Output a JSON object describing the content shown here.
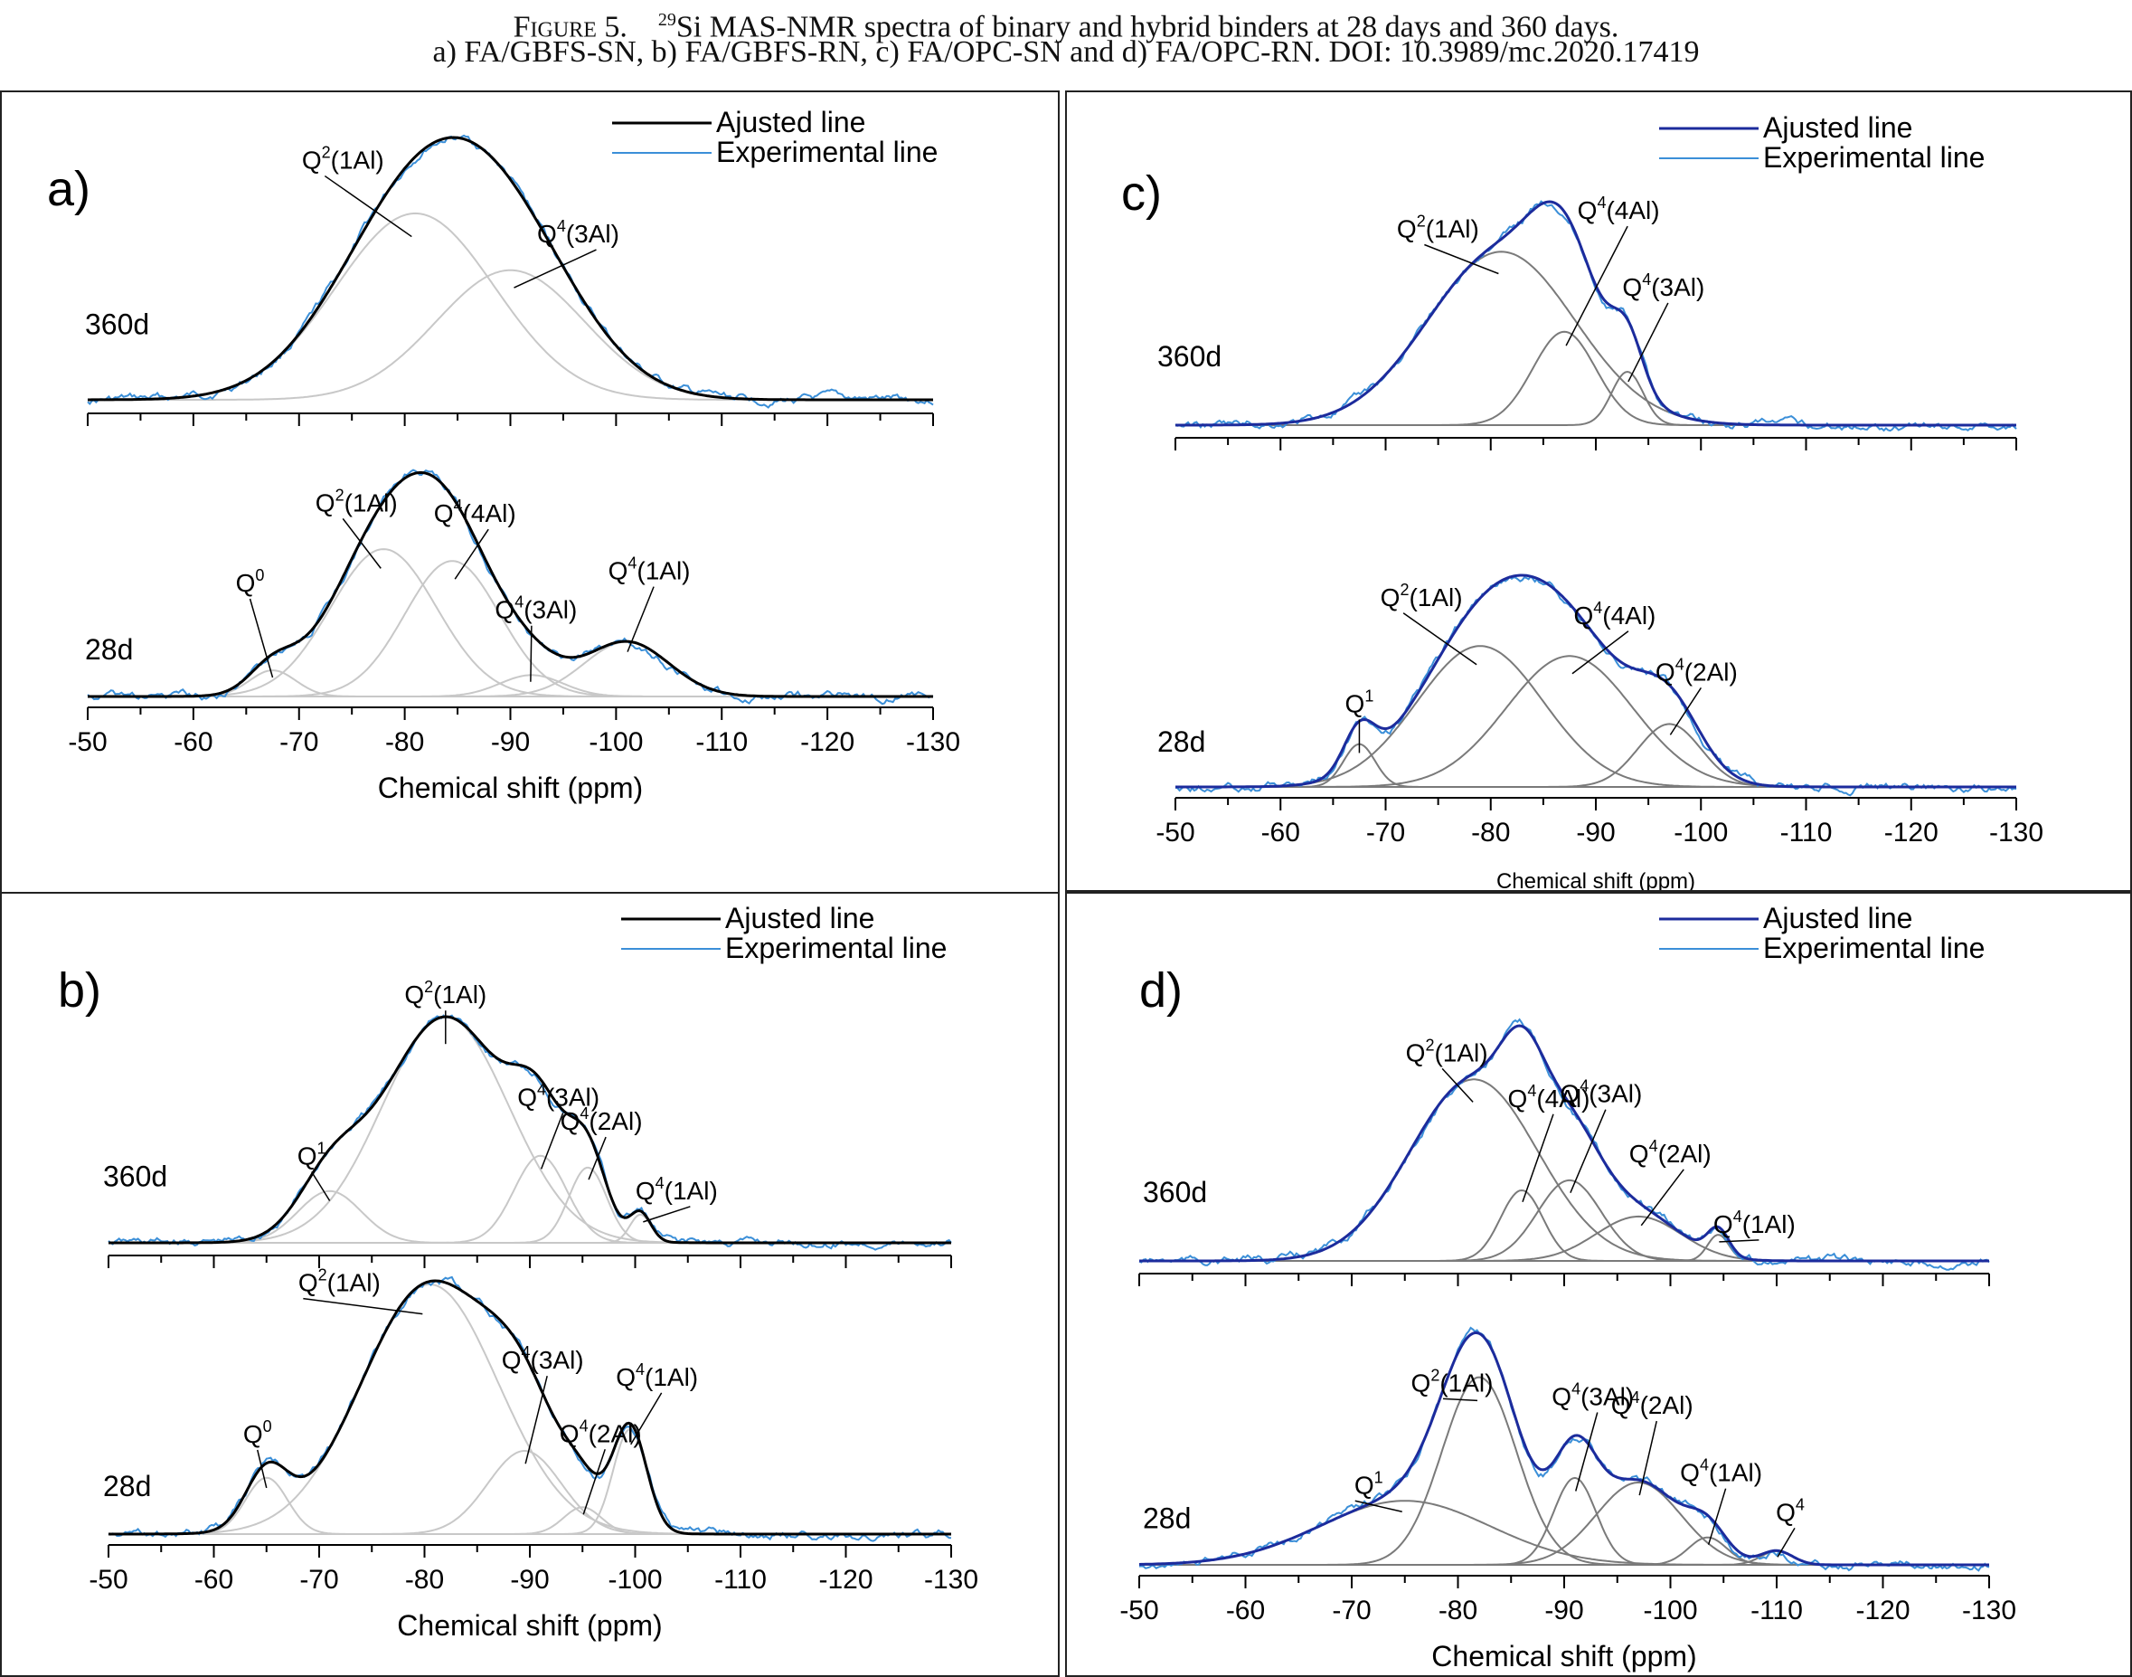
{
  "caption": {
    "figure_label": "Figure 5.",
    "isotope_superscript": "29",
    "line1_text": "Si MAS-NMR spectra of binary and hybrid binders at 28 days and 360 days.",
    "line2_text": "a) FA/GBFS-SN, b) FA/GBFS-RN, c) FA/OPC-SN and d) FA/OPC-RN. DOI: 10.3989/mc.2020.17419"
  },
  "colors": {
    "adjusted_line_black": "#000000",
    "adjusted_line_navy": "#1c2b9c",
    "experimental_line": "#3b8fd8",
    "component_light": "#c8c8c8",
    "component_dark": "#7a7a7a",
    "axis": "#000000"
  },
  "chart_data": [
    {
      "type": "line",
      "panel_label": "a)",
      "xlabel": "Chemical shift (ppm)",
      "xlim": [
        -50,
        -130
      ],
      "x_ticks": [
        -50,
        -60,
        -70,
        -80,
        -90,
        -100,
        -110,
        -120,
        -130
      ],
      "legend": [
        "Ajusted line",
        "Experimental line"
      ],
      "legend_position": "top-right",
      "grid": false,
      "adjusted_color": "#000000",
      "component_color": "#c8c8c8",
      "spectra": [
        {
          "label": "360d",
          "peak_height": 1.0,
          "components": [
            {
              "label": "Q2(1Al)",
              "label_main": "Q",
              "sup": "2",
              "tail": "(1Al)",
              "center": -81,
              "width": 7.5,
              "amplitude": 0.82
            },
            {
              "label": "Q4(3Al)",
              "label_main": "Q",
              "sup": "4",
              "tail": "(3Al)",
              "center": -90,
              "width": 7.0,
              "amplitude": 0.57
            }
          ]
        },
        {
          "label": "28d",
          "peak_height": 0.9,
          "components": [
            {
              "label": "Q0",
              "label_main": "Q",
              "sup": "0",
              "tail": "",
              "center": -67.5,
              "width": 2.2,
              "amplitude": 0.11
            },
            {
              "label": "Q2(1Al)",
              "label_main": "Q",
              "sup": "2",
              "tail": "(1Al)",
              "center": -78,
              "width": 5.0,
              "amplitude": 0.62
            },
            {
              "label": "Q4(4Al)",
              "label_main": "Q",
              "sup": "4",
              "tail": "(4Al)",
              "center": -84.5,
              "width": 4.5,
              "amplitude": 0.57
            },
            {
              "label": "Q4(3Al)",
              "label_main": "Q",
              "sup": "4",
              "tail": "(3Al)",
              "center": -92,
              "width": 3.0,
              "amplitude": 0.09
            },
            {
              "label": "Q4(1Al)",
              "label_main": "Q",
              "sup": "4",
              "tail": "(1Al)",
              "center": -101,
              "width": 4.0,
              "amplitude": 0.23
            }
          ]
        }
      ]
    },
    {
      "type": "line",
      "panel_label": "b)",
      "xlabel": "Chemical shift (ppm)",
      "xlim": [
        -50,
        -130
      ],
      "x_ticks": [
        -50,
        -60,
        -70,
        -80,
        -90,
        -100,
        -110,
        -120,
        -130
      ],
      "legend": [
        "Ajusted line",
        "Experimental line"
      ],
      "legend_position": "top-right",
      "grid": false,
      "adjusted_color": "#000000",
      "component_color": "#c8c8c8",
      "spectra": [
        {
          "label": "360d",
          "peak_height": 1.0,
          "components": [
            {
              "label": "Q1",
              "label_main": "Q",
              "sup": "1",
              "tail": "",
              "center": -71,
              "width": 3.0,
              "amplitude": 0.22
            },
            {
              "label": "Q2(1Al)",
              "label_main": "Q",
              "sup": "2",
              "tail": "(1Al)",
              "center": -82,
              "width": 6.0,
              "amplitude": 0.96
            },
            {
              "label": "Q4(3Al)",
              "label_main": "Q",
              "sup": "4",
              "tail": "(3Al)",
              "center": -91,
              "width": 2.5,
              "amplitude": 0.37
            },
            {
              "label": "Q4(2Al)",
              "label_main": "Q",
              "sup": "4",
              "tail": "(2Al)",
              "center": -95.5,
              "width": 1.8,
              "amplitude": 0.32
            },
            {
              "label": "Q4(1Al)",
              "label_main": "Q",
              "sup": "4",
              "tail": "(1Al)",
              "center": -100.5,
              "width": 1.0,
              "amplitude": 0.12
            }
          ]
        },
        {
          "label": "28d",
          "peak_height": 1.0,
          "components": [
            {
              "label": "Q0",
              "label_main": "Q",
              "sup": "0",
              "tail": "",
              "center": -65,
              "width": 2.0,
              "amplitude": 0.21
            },
            {
              "label": "Q2(1Al)",
              "label_main": "Q",
              "sup": "2",
              "tail": "(1Al)",
              "center": -80.5,
              "width": 6.5,
              "amplitude": 0.93
            },
            {
              "label": "Q4(3Al)",
              "label_main": "Q",
              "sup": "4",
              "tail": "(3Al)",
              "center": -89.5,
              "width": 3.5,
              "amplitude": 0.31
            },
            {
              "label": "Q4(2Al)",
              "label_main": "Q",
              "sup": "4",
              "tail": "(2Al)",
              "center": -95,
              "width": 1.8,
              "amplitude": 0.1
            },
            {
              "label": "Q4(1Al)",
              "label_main": "Q",
              "sup": "4",
              "tail": "(1Al)",
              "center": -99.5,
              "width": 1.6,
              "amplitude": 0.39
            }
          ]
        }
      ]
    },
    {
      "type": "line",
      "panel_label": "c)",
      "xlabel": "Chemical shift (ppm)",
      "xlim": [
        -50,
        -130
      ],
      "x_ticks": [
        -50,
        -60,
        -70,
        -80,
        -90,
        -100,
        -110,
        -120,
        -130
      ],
      "legend": [
        "Ajusted line",
        "Experimental line"
      ],
      "legend_position": "top-right",
      "grid": false,
      "adjusted_color": "#1c2b9c",
      "component_color": "#7a7a7a",
      "spectra": [
        {
          "label": "360d",
          "peak_height": 0.95,
          "components": [
            {
              "label": "Q2(1Al)",
              "label_main": "Q",
              "sup": "2",
              "tail": "(1Al)",
              "center": -81,
              "width": 7.0,
              "amplitude": 0.78
            },
            {
              "label": "Q4(4Al)",
              "label_main": "Q",
              "sup": "4",
              "tail": "(4Al)",
              "center": -87,
              "width": 3.0,
              "amplitude": 0.42
            },
            {
              "label": "Q4(3Al)",
              "label_main": "Q",
              "sup": "4",
              "tail": "(3Al)",
              "center": -93,
              "width": 1.5,
              "amplitude": 0.24
            }
          ]
        },
        {
          "label": "28d",
          "peak_height": 0.9,
          "components": [
            {
              "label": "Q1",
              "label_main": "Q",
              "sup": "1",
              "tail": "",
              "center": -67.5,
              "width": 1.5,
              "amplitude": 0.17
            },
            {
              "label": "Q2(1Al)",
              "label_main": "Q",
              "sup": "2",
              "tail": "(1Al)",
              "center": -79,
              "width": 6.0,
              "amplitude": 0.56
            },
            {
              "label": "Q4(4Al)",
              "label_main": "Q",
              "sup": "4",
              "tail": "(4Al)",
              "center": -87.5,
              "width": 6.0,
              "amplitude": 0.52
            },
            {
              "label": "Q4(2Al)",
              "label_main": "Q",
              "sup": "4",
              "tail": "(2Al)",
              "center": -97,
              "width": 3.0,
              "amplitude": 0.25
            }
          ]
        }
      ]
    },
    {
      "type": "line",
      "panel_label": "d)",
      "xlabel": "Chemical shift (ppm)",
      "xlim": [
        -50,
        -130
      ],
      "x_ticks": [
        -50,
        -60,
        -70,
        -80,
        -90,
        -100,
        -110,
        -120,
        -130
      ],
      "legend": [
        "Ajusted line",
        "Experimental line"
      ],
      "legend_position": "top-right",
      "grid": false,
      "adjusted_color": "#1c2b9c",
      "component_color": "#7a7a7a",
      "spectra": [
        {
          "label": "360d",
          "peak_height": 1.0,
          "components": [
            {
              "label": "Q2(1Al)",
              "label_main": "Q",
              "sup": "2",
              "tail": "(1Al)",
              "center": -81.5,
              "width": 6.0,
              "amplitude": 0.9
            },
            {
              "label": "Q4(4Al)",
              "label_main": "Q",
              "sup": "4",
              "tail": "(4Al)",
              "center": -86,
              "width": 2.0,
              "amplitude": 0.35
            },
            {
              "label": "Q4(3Al)",
              "label_main": "Q",
              "sup": "4",
              "tail": "(3Al)",
              "center": -90.5,
              "width": 3.0,
              "amplitude": 0.4
            },
            {
              "label": "Q4(2Al)",
              "label_main": "Q",
              "sup": "4",
              "tail": "(2Al)",
              "center": -97,
              "width": 4.0,
              "amplitude": 0.22
            },
            {
              "label": "Q4(1Al)",
              "label_main": "Q",
              "sup": "4",
              "tail": "(1Al)",
              "center": -104.5,
              "width": 1.0,
              "amplitude": 0.13
            }
          ]
        },
        {
          "label": "28d",
          "peak_height": 0.95,
          "components": [
            {
              "label": "Q1",
              "label_main": "Q",
              "sup": "1",
              "tail": "",
              "center": -75,
              "width": 8.0,
              "amplitude": 0.28
            },
            {
              "label": "Q2(1Al)",
              "label_main": "Q",
              "sup": "2",
              "tail": "(1Al)",
              "center": -82,
              "width": 3.5,
              "amplitude": 0.82
            },
            {
              "label": "Q4(3Al)",
              "label_main": "Q",
              "sup": "4",
              "tail": "(3Al)",
              "center": -91,
              "width": 2.0,
              "amplitude": 0.38
            },
            {
              "label": "Q4(2Al)",
              "label_main": "Q",
              "sup": "4",
              "tail": "(2Al)",
              "center": -97,
              "width": 4.0,
              "amplitude": 0.36
            },
            {
              "label": "Q4(1Al)",
              "label_main": "Q",
              "sup": "4",
              "tail": "(1Al)",
              "center": -103.5,
              "width": 1.8,
              "amplitude": 0.12
            },
            {
              "label": "Q4",
              "label_main": "Q",
              "sup": "4",
              "tail": "",
              "center": -110,
              "width": 1.5,
              "amplitude": 0.06
            }
          ]
        }
      ]
    }
  ]
}
